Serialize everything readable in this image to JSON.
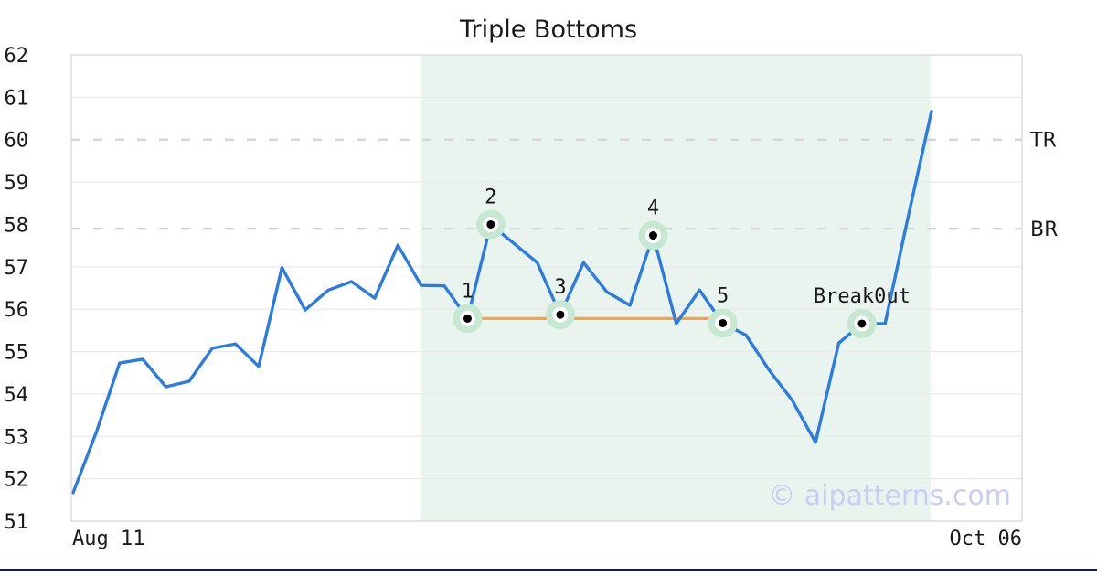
{
  "title": "Triple Bottoms",
  "watermark": "© aipatterns.com",
  "x_axis": {
    "start_label": "Aug 11",
    "end_label": "Oct 06"
  },
  "y_axis": {
    "min": 51,
    "max": 62,
    "ticks": [
      51,
      52,
      53,
      54,
      55,
      56,
      57,
      58,
      59,
      60,
      61,
      62
    ]
  },
  "colors": {
    "line_blue": "#2b7ce0",
    "neckline_orange": "#f9a147",
    "zone_fill": "#e9f4ef",
    "marker_halo": "#c6e8d3",
    "marker_ring": "#ffffff",
    "marker_dot": "#000000",
    "grid": "#e9e9e9",
    "dashed_level": "#d3d3d3",
    "frame": "#d9d9d9",
    "text": "#1a1a1a",
    "watermark_color": "#c9cdf3",
    "bottom_bar": "#141a45"
  },
  "chart_data": {
    "type": "line",
    "title": "Triple Bottoms",
    "x_start_label": "Aug 11",
    "x_end_label": "Oct 06",
    "ylim": [
      51,
      62
    ],
    "grid": true,
    "values": [
      51.67,
      53.1,
      54.73,
      54.82,
      54.17,
      54.3,
      55.08,
      55.18,
      54.65,
      56.98,
      55.98,
      56.45,
      56.65,
      56.26,
      57.51,
      56.56,
      56.55,
      55.78,
      58.0,
      57.55,
      57.1,
      55.87,
      57.1,
      56.41,
      56.09,
      57.74,
      55.66,
      56.45,
      55.67,
      55.39,
      54.56,
      53.85,
      52.86,
      55.2,
      55.66,
      55.66,
      58.2,
      60.67
    ],
    "markers": [
      {
        "index": 17,
        "label": "1",
        "value": 55.78
      },
      {
        "index": 18,
        "label": "2",
        "value": 58.0
      },
      {
        "index": 21,
        "label": "3",
        "value": 55.87
      },
      {
        "index": 25,
        "label": "4",
        "value": 57.74
      },
      {
        "index": 28,
        "label": "5",
        "value": 55.67
      },
      {
        "index": 34,
        "label": "Break0ut",
        "value": 55.66
      }
    ],
    "neckline": {
      "from_index": 17,
      "to_index": 28,
      "value": 55.78
    },
    "pattern_zone": {
      "x_start_frac": 0.367,
      "x_end_frac": 0.904
    },
    "resistance_lines": [
      {
        "label": "TR",
        "value": 60.0
      },
      {
        "label": "BR",
        "value": 57.9
      }
    ]
  }
}
